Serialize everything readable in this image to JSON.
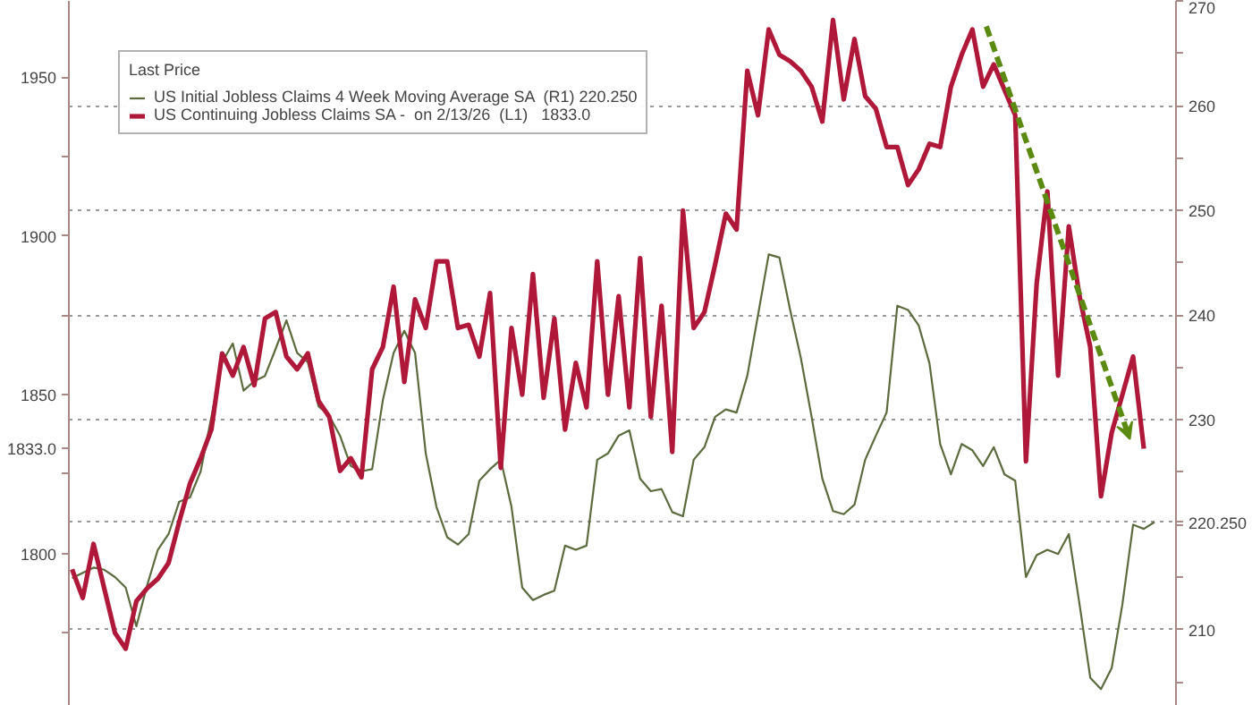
{
  "chart_data": {
    "type": "line",
    "legend_title": "Last Price",
    "legend": "top left",
    "grid": "y",
    "categories": [
      null,
      null,
      null,
      null,
      null,
      null,
      null,
      null,
      null,
      null,
      null,
      null,
      null,
      null,
      null,
      null,
      null,
      null,
      null,
      null,
      null,
      null,
      null,
      null,
      null,
      null,
      null,
      null,
      null,
      null,
      null,
      null,
      null,
      null,
      null,
      null,
      null,
      null,
      null,
      null,
      null,
      null,
      null,
      null,
      null,
      null,
      null,
      null,
      null,
      null,
      null,
      null,
      null,
      null,
      null,
      null,
      null,
      null,
      null,
      null,
      null,
      null,
      null,
      null,
      null,
      null,
      null,
      null,
      null,
      null,
      null,
      null,
      null,
      null,
      null,
      null,
      null,
      null,
      null,
      null,
      null,
      null,
      null,
      null,
      null,
      null,
      null,
      null,
      null,
      null,
      null,
      null,
      null,
      null,
      null,
      null,
      null,
      null,
      null,
      null,
      null,
      null
    ],
    "series": [
      {
        "name": "US Initial Jobless Claims 4 Week Moving Average SA  (R1) 220.250",
        "color": "#5b6b3e",
        "axis": "y2",
        "values": [
          214.9,
          215.4,
          215.9,
          215.7,
          215.0,
          214.0,
          210.3,
          214.2,
          217.6,
          219.1,
          222.2,
          222.6,
          225.1,
          230.3,
          235.5,
          237.3,
          232.8,
          233.7,
          234.2,
          236.8,
          239.5,
          236.4,
          235.5,
          231.3,
          230.4,
          228.5,
          225.6,
          225.1,
          225.3,
          231.9,
          236.4,
          238.5,
          236.4,
          226.8,
          221.7,
          218.8,
          218.1,
          219.1,
          224.2,
          225.3,
          226.2,
          221.7,
          214.0,
          212.8,
          213.3,
          213.7,
          218.0,
          217.6,
          218.0,
          226.2,
          226.8,
          228.5,
          229.0,
          224.4,
          223.2,
          223.4,
          221.2,
          220.8,
          226.2,
          227.4,
          230.3,
          231.0,
          230.7,
          234.2,
          240.0,
          245.8,
          245.5,
          240.5,
          235.9,
          230.3,
          224.4,
          221.3,
          221.0,
          221.9,
          226.2,
          228.5,
          230.7,
          240.9,
          240.5,
          239.0,
          235.4,
          227.7,
          224.8,
          227.7,
          227.1,
          225.6,
          227.4,
          224.8,
          224.2,
          215.0,
          217.1,
          217.6,
          217.2,
          219.1,
          212.4,
          205.4,
          204.3,
          206.3,
          212.4,
          220.0,
          219.6,
          220.25
        ]
      },
      {
        "name": "US Continuing Jobless Claims SA -  on 2/13/26  (L1)   1833.0",
        "color": "#b0183a",
        "values": [
          1795,
          1786,
          1803,
          1789,
          1775,
          1770,
          1785,
          1789,
          1792,
          1797,
          1810,
          1822,
          1830,
          1839,
          1863,
          1856,
          1865,
          1853,
          1874,
          1876,
          1862,
          1858,
          1863,
          1848,
          1843,
          1826,
          1830,
          1824,
          1858,
          1865,
          1884,
          1854,
          1880,
          1871,
          1892,
          1892,
          1871,
          1872,
          1862,
          1882,
          1827,
          1871,
          1850,
          1888,
          1849,
          1874,
          1839,
          1860,
          1846,
          1892,
          1850,
          1881,
          1846,
          1893,
          1843,
          1878,
          1832,
          1908,
          1871,
          1876,
          1891,
          1907,
          1902,
          1952,
          1938,
          1965,
          1957,
          1955,
          1952,
          1947,
          1936,
          1968,
          1943,
          1962,
          1944,
          1940,
          1928,
          1928,
          1916,
          1921,
          1929,
          1928,
          1947,
          1957,
          1965,
          1947,
          1954,
          1946,
          1938,
          1829,
          1885,
          1914,
          1856,
          1903,
          1881,
          1865,
          1818,
          1838,
          1850,
          1862,
          1833,
          null
        ]
      }
    ],
    "ylim": [
      1752,
      1974
    ],
    "yticks": [
      {
        "value": 1775,
        "label": null
      },
      1800,
      {
        "value": 1825,
        "label": null
      },
      {
        "value": 1833,
        "label": "1833.0"
      },
      1850,
      {
        "value": 1875,
        "label": null
      },
      1900,
      {
        "value": 1925,
        "label": null
      },
      1950
    ],
    "y2lim": [
      202.7,
      270
    ],
    "y2ticks": [
      {
        "value": 205,
        "label": null
      },
      210,
      {
        "value": 215,
        "label": null
      },
      {
        "value": 220,
        "label": null
      },
      {
        "value": 220.25,
        "label": "220.250"
      },
      {
        "value": 225,
        "label": null
      },
      230,
      {
        "value": 235,
        "label": null
      },
      240,
      {
        "value": 245,
        "label": null
      },
      250,
      {
        "value": 255,
        "label": null
      },
      260,
      {
        "value": 265,
        "label": null
      },
      270
    ],
    "tick_labels": "y"
  }
}
